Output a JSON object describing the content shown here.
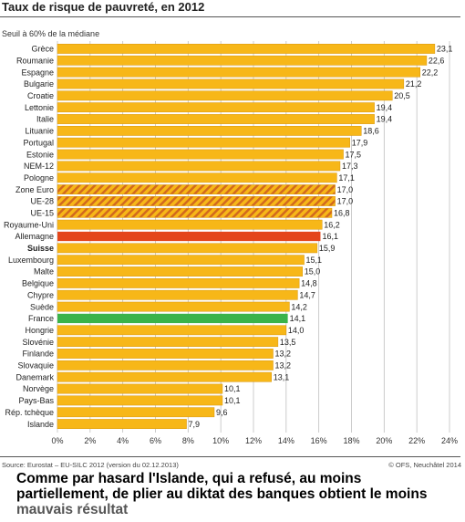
{
  "header": {
    "title": "Taux de risque de pauvreté, en 2012",
    "subtitle": "Seuil à 60% de la médiane"
  },
  "footer": {
    "source": "Source: Eurostat – EU-SILC 2012 (version du 02.12.2013)",
    "copyright": "© OFS, Neuchâtel 2014"
  },
  "caption": {
    "line1": "Comme par hasard l'Islande, qui a refusé, au moins partiellement, de plier au diktat des banques obtient le moins",
    "line2": "mauvais résultat"
  },
  "colors": {
    "bar": "#f7b718",
    "bar_stroke": "#d9960a",
    "hatch_base": "#f7b718",
    "hatch_line": "#d2691e",
    "highlight_red": "#e4461b",
    "highlight_green": "#3bb34a",
    "grid": "#bfbfbf"
  },
  "chart_data": {
    "type": "bar",
    "orientation": "horizontal",
    "title": "Taux de risque de pauvreté, en 2012",
    "subtitle": "Seuil à 60% de la médiane",
    "xlim": [
      0,
      24
    ],
    "x_ticks": [
      "0%",
      "2%",
      "4%",
      "6%",
      "8%",
      "10%",
      "12%",
      "14%",
      "16%",
      "18%",
      "20%",
      "22%",
      "24%"
    ],
    "grid": true,
    "categories": [
      "Grèce",
      "Roumanie",
      "Espagne",
      "Bulgarie",
      "Croatie",
      "Lettonie",
      "Italie",
      "Lituanie",
      "Portugal",
      "Estonie",
      "NEM-12",
      "Pologne",
      "Zone Euro",
      "UE-28",
      "UE-15",
      "Royaume-Uni",
      "Allemagne",
      "Suisse",
      "Luxembourg",
      "Malte",
      "Belgique",
      "Chypre",
      "Suède",
      "France",
      "Hongrie",
      "Slovénie",
      "Finlande",
      "Slovaquie",
      "Danemark",
      "Norvège",
      "Pays-Bas",
      "Rép. tchèque",
      "Islande"
    ],
    "values": [
      23.1,
      22.6,
      22.2,
      21.2,
      20.5,
      19.4,
      19.4,
      18.6,
      17.9,
      17.5,
      17.3,
      17.1,
      17.0,
      17.0,
      16.8,
      16.2,
      16.1,
      15.9,
      15.1,
      15.0,
      14.8,
      14.7,
      14.2,
      14.1,
      14.0,
      13.5,
      13.2,
      13.2,
      13.1,
      10.1,
      10.1,
      9.6,
      7.9
    ],
    "value_labels": [
      "23,1",
      "22,6",
      "22,2",
      "21,2",
      "20,5",
      "19,4",
      "19,4",
      "18,6",
      "17,9",
      "17,5",
      "17,3",
      "17,1",
      "17,0",
      "17,0",
      "16,8",
      "16,2",
      "16,1",
      "15,9",
      "15,1",
      "15,0",
      "14,8",
      "14,7",
      "14,2",
      "14,1",
      "14,0",
      "13,5",
      "13,2",
      "13,2",
      "13,1",
      "10,1",
      "10,1",
      "9,6",
      "7,9"
    ],
    "styles": [
      "normal",
      "normal",
      "normal",
      "normal",
      "normal",
      "normal",
      "normal",
      "normal",
      "normal",
      "normal",
      "normal",
      "normal",
      "hatched",
      "hatched",
      "hatched",
      "normal",
      "red",
      "normal",
      "normal",
      "normal",
      "normal",
      "normal",
      "normal",
      "green",
      "normal",
      "normal",
      "normal",
      "normal",
      "normal",
      "normal",
      "normal",
      "normal",
      "normal"
    ],
    "bold_categories": [
      "Suisse"
    ]
  }
}
